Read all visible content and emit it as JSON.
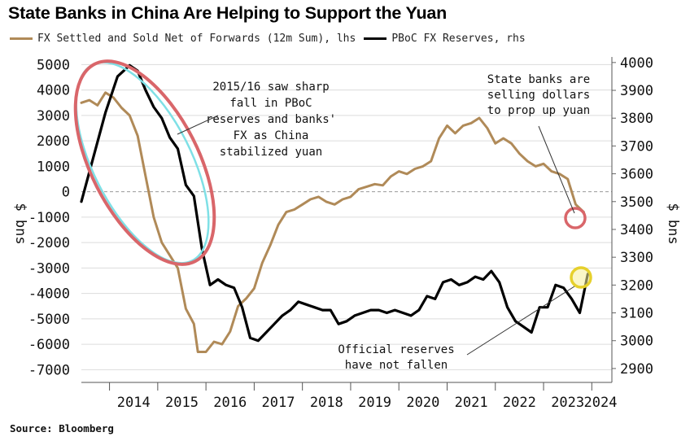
{
  "title": "State Banks in China Are Helping to Support the Yuan",
  "source": "Source: Bloomberg",
  "colors": {
    "fx_line": "#b08a58",
    "reserves_line": "#000000",
    "grid": "#dcdcdc",
    "zero_line": "#9a9a9a",
    "red_circle": "#d9666a",
    "cyan_circle": "#7fe0e6",
    "yellow_circle": "#e6d02c"
  },
  "chart_data": {
    "type": "line",
    "series": [
      {
        "name": "FX Settled and Sold Net of Forwards (12m Sum), lhs",
        "axis": "left",
        "color": "#b08a58",
        "points": [
          [
            "2013-06",
            3500
          ],
          [
            "2013-08",
            3600
          ],
          [
            "2013-10",
            3400
          ],
          [
            "2013-12",
            3900
          ],
          [
            "2014-02",
            3700
          ],
          [
            "2014-04",
            3300
          ],
          [
            "2014-06",
            3000
          ],
          [
            "2014-08",
            2200
          ],
          [
            "2014-10",
            600
          ],
          [
            "2014-12",
            -1000
          ],
          [
            "2015-02",
            -2000
          ],
          [
            "2015-04",
            -2500
          ],
          [
            "2015-06",
            -3000
          ],
          [
            "2015-08",
            -4600
          ],
          [
            "2015-10",
            -5200
          ],
          [
            "2015-11",
            -6300
          ],
          [
            "2016-01",
            -6300
          ],
          [
            "2016-03",
            -5900
          ],
          [
            "2016-05",
            -6000
          ],
          [
            "2016-07",
            -5500
          ],
          [
            "2016-09",
            -4500
          ],
          [
            "2016-11",
            -4200
          ],
          [
            "2017-01",
            -3800
          ],
          [
            "2017-03",
            -2800
          ],
          [
            "2017-05",
            -2100
          ],
          [
            "2017-07",
            -1300
          ],
          [
            "2017-09",
            -800
          ],
          [
            "2017-11",
            -700
          ],
          [
            "2018-01",
            -500
          ],
          [
            "2018-03",
            -300
          ],
          [
            "2018-05",
            -200
          ],
          [
            "2018-07",
            -400
          ],
          [
            "2018-09",
            -500
          ],
          [
            "2018-11",
            -300
          ],
          [
            "2019-01",
            -200
          ],
          [
            "2019-03",
            100
          ],
          [
            "2019-05",
            200
          ],
          [
            "2019-07",
            300
          ],
          [
            "2019-09",
            250
          ],
          [
            "2019-11",
            600
          ],
          [
            "2020-01",
            800
          ],
          [
            "2020-03",
            700
          ],
          [
            "2020-05",
            900
          ],
          [
            "2020-07",
            1000
          ],
          [
            "2020-09",
            1200
          ],
          [
            "2020-11",
            2100
          ],
          [
            "2021-01",
            2600
          ],
          [
            "2021-03",
            2300
          ],
          [
            "2021-05",
            2600
          ],
          [
            "2021-07",
            2700
          ],
          [
            "2021-09",
            2900
          ],
          [
            "2021-11",
            2500
          ],
          [
            "2022-01",
            1900
          ],
          [
            "2022-03",
            2100
          ],
          [
            "2022-05",
            1900
          ],
          [
            "2022-07",
            1500
          ],
          [
            "2022-09",
            1200
          ],
          [
            "2022-11",
            1000
          ],
          [
            "2023-01",
            1100
          ],
          [
            "2023-03",
            800
          ],
          [
            "2023-05",
            700
          ],
          [
            "2023-07",
            500
          ],
          [
            "2023-09",
            -500
          ],
          [
            "2023-11",
            -800
          ]
        ]
      },
      {
        "name": "PBoC FX Reserves, rhs",
        "axis": "right",
        "color": "#000000",
        "points": [
          [
            "2013-06",
            3500
          ],
          [
            "2013-09",
            3660
          ],
          [
            "2013-12",
            3820
          ],
          [
            "2014-03",
            3950
          ],
          [
            "2014-06",
            3990
          ],
          [
            "2014-08",
            3970
          ],
          [
            "2014-10",
            3900
          ],
          [
            "2014-12",
            3840
          ],
          [
            "2015-02",
            3800
          ],
          [
            "2015-04",
            3730
          ],
          [
            "2015-06",
            3690
          ],
          [
            "2015-08",
            3560
          ],
          [
            "2015-10",
            3520
          ],
          [
            "2015-12",
            3330
          ],
          [
            "2016-02",
            3200
          ],
          [
            "2016-04",
            3220
          ],
          [
            "2016-06",
            3200
          ],
          [
            "2016-08",
            3190
          ],
          [
            "2016-10",
            3120
          ],
          [
            "2016-12",
            3010
          ],
          [
            "2017-02",
            3000
          ],
          [
            "2017-04",
            3030
          ],
          [
            "2017-06",
            3060
          ],
          [
            "2017-08",
            3090
          ],
          [
            "2017-10",
            3110
          ],
          [
            "2017-12",
            3140
          ],
          [
            "2018-02",
            3130
          ],
          [
            "2018-04",
            3120
          ],
          [
            "2018-06",
            3110
          ],
          [
            "2018-08",
            3110
          ],
          [
            "2018-10",
            3060
          ],
          [
            "2018-12",
            3070
          ],
          [
            "2019-02",
            3090
          ],
          [
            "2019-04",
            3100
          ],
          [
            "2019-06",
            3110
          ],
          [
            "2019-08",
            3110
          ],
          [
            "2019-10",
            3100
          ],
          [
            "2019-12",
            3110
          ],
          [
            "2020-02",
            3100
          ],
          [
            "2020-04",
            3090
          ],
          [
            "2020-06",
            3110
          ],
          [
            "2020-08",
            3160
          ],
          [
            "2020-10",
            3150
          ],
          [
            "2020-12",
            3210
          ],
          [
            "2021-02",
            3220
          ],
          [
            "2021-04",
            3200
          ],
          [
            "2021-06",
            3210
          ],
          [
            "2021-08",
            3230
          ],
          [
            "2021-10",
            3220
          ],
          [
            "2021-12",
            3250
          ],
          [
            "2022-02",
            3210
          ],
          [
            "2022-04",
            3120
          ],
          [
            "2022-06",
            3070
          ],
          [
            "2022-08",
            3050
          ],
          [
            "2022-10",
            3030
          ],
          [
            "2022-12",
            3120
          ],
          [
            "2023-02",
            3120
          ],
          [
            "2023-04",
            3200
          ],
          [
            "2023-06",
            3190
          ],
          [
            "2023-08",
            3150
          ],
          [
            "2023-10",
            3100
          ],
          [
            "2023-12",
            3240
          ]
        ]
      }
    ],
    "x_ticks": [
      "2014",
      "2015",
      "2016",
      "2017",
      "2018",
      "2019",
      "2020",
      "2021",
      "2022",
      "2023",
      "2024"
    ],
    "x_range": [
      "2013-06",
      "2024-06"
    ],
    "y_left": {
      "label": "$ bns",
      "ticks": [
        5000,
        4000,
        3000,
        2000,
        1000,
        0,
        -1000,
        -2000,
        -3000,
        -4000,
        -5000,
        -6000,
        -7000
      ],
      "range": [
        -7500,
        5300
      ]
    },
    "y_right": {
      "label": "$ bns",
      "ticks": [
        4000,
        3900,
        3800,
        3700,
        3600,
        3500,
        3400,
        3300,
        3200,
        3100,
        3000,
        2900
      ],
      "range": [
        2850,
        4020
      ]
    },
    "grid": true,
    "legend": "top-left",
    "annotations": [
      {
        "lines": [
          "2015/16 saw sharp",
          "fall in PBoC",
          "reserves and banks'",
          "FX as China",
          "stabilized yuan"
        ]
      },
      {
        "lines": [
          "State banks are",
          "selling dollars",
          "to prop up yuan"
        ]
      },
      {
        "lines": [
          "Official reserves",
          "have not fallen"
        ]
      }
    ]
  }
}
